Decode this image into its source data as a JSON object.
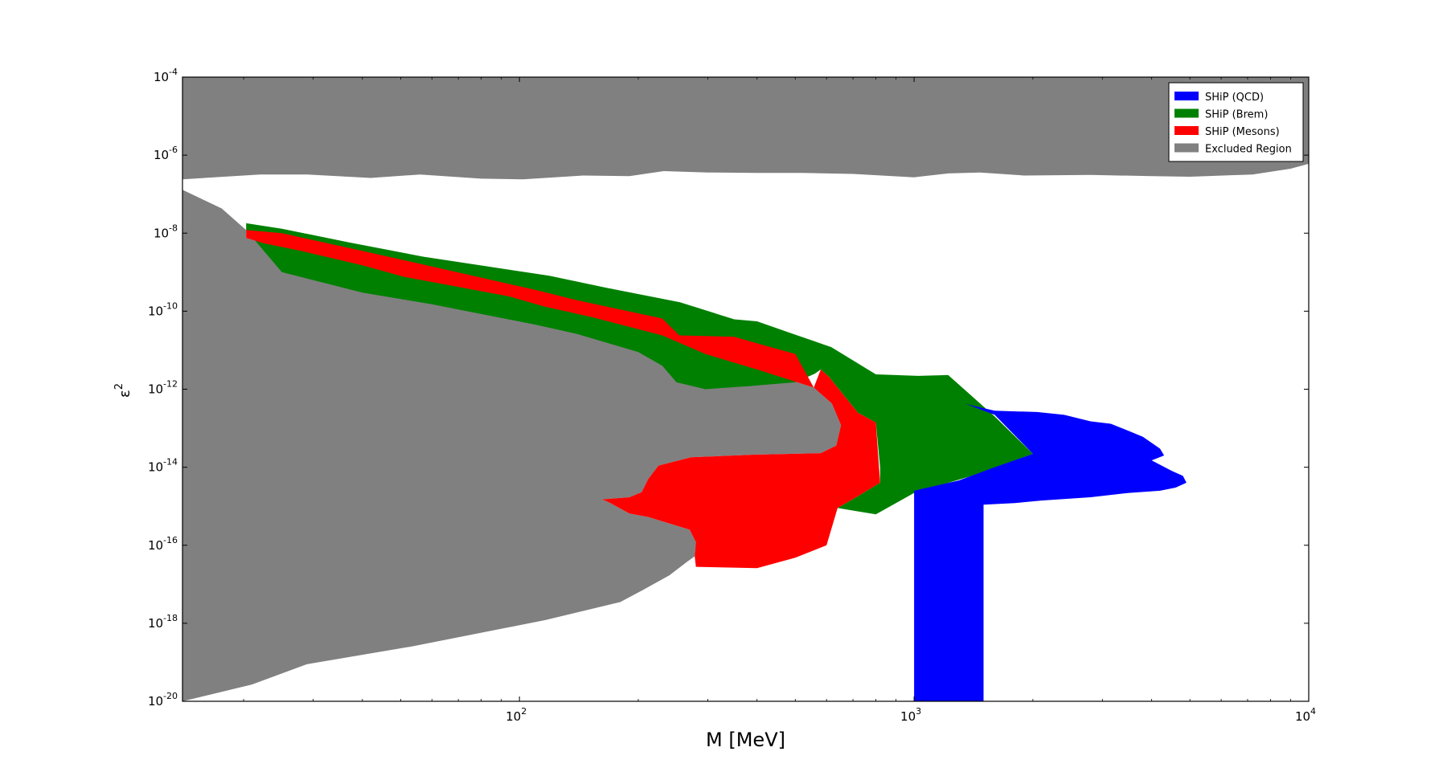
{
  "chart_data": {
    "type": "area",
    "x_scale": "log",
    "y_scale": "log",
    "xlabel": "M [MeV]",
    "ylabel": "ε²",
    "xlim": [
      14,
      10000
    ],
    "ylim": [
      1e-20,
      0.0001
    ],
    "x_tick_labels": [
      {
        "value": 100,
        "base": "10",
        "exp": "2"
      },
      {
        "value": 1000,
        "base": "10",
        "exp": "3"
      },
      {
        "value": 10000,
        "base": "10",
        "exp": "4"
      }
    ],
    "y_tick_labels": [
      {
        "value": 0.0001,
        "base": "10",
        "exp": "-4"
      },
      {
        "value": 1e-06,
        "base": "10",
        "exp": "-6"
      },
      {
        "value": 1e-08,
        "base": "10",
        "exp": "-8"
      },
      {
        "value": 1e-10,
        "base": "10",
        "exp": "-10"
      },
      {
        "value": 1e-12,
        "base": "10",
        "exp": "-12"
      },
      {
        "value": 1e-14,
        "base": "10",
        "exp": "-14"
      },
      {
        "value": 1e-16,
        "base": "10",
        "exp": "-16"
      },
      {
        "value": 1e-18,
        "base": "10",
        "exp": "-18"
      },
      {
        "value": 1e-20,
        "base": "10",
        "exp": "-20"
      }
    ],
    "legend_position": "top-right",
    "grid": false,
    "series": [
      {
        "name": "Excluded Region",
        "color": "#808080",
        "polygons": [
          [
            [
              14,
              0.0001
            ],
            [
              10000,
              0.0001
            ],
            [
              10000,
              6e-07
            ],
            [
              9000,
              4.5e-07
            ],
            [
              7200,
              3.2e-07
            ],
            [
              5000,
              2.8e-07
            ],
            [
              4000,
              2.9e-07
            ],
            [
              2800,
              3.1e-07
            ],
            [
              1900,
              3e-07
            ],
            [
              1470,
              3.6e-07
            ],
            [
              1220,
              3.4e-07
            ],
            [
              1000,
              2.7e-07
            ],
            [
              700,
              3.3e-07
            ],
            [
              520,
              3.5e-07
            ],
            [
              400,
              3.5e-07
            ],
            [
              300,
              3.6e-07
            ],
            [
              232,
              3.9e-07
            ],
            [
              190,
              2.9e-07
            ],
            [
              145,
              3e-07
            ],
            [
              102,
              2.4e-07
            ],
            [
              80,
              2.5e-07
            ],
            [
              56,
              3.2e-07
            ],
            [
              42,
              2.6e-07
            ],
            [
              29,
              3.2e-07
            ],
            [
              22,
              3.2e-07
            ],
            [
              14,
              2.4e-07
            ]
          ],
          [
            [
              14,
              1.3e-07
            ],
            [
              17.6,
              4.3e-08
            ],
            [
              20.3,
              1.2e-08
            ],
            [
              20.3,
              7.5e-09
            ],
            [
              22.5,
              5.5e-09
            ],
            [
              28,
              3.5e-09
            ],
            [
              40,
              1.5e-09
            ],
            [
              51,
              7.6e-10
            ],
            [
              94,
              2.4e-10
            ],
            [
              116,
              1.3e-10
            ],
            [
              153,
              7e-11
            ],
            [
              230,
              2.4e-11
            ],
            [
              296,
              8e-12
            ],
            [
              408,
              3e-12
            ],
            [
              557,
              1.1e-12
            ],
            [
              619,
              4.3e-13
            ],
            [
              653,
              1.2e-13
            ],
            [
              635,
              3.6e-14
            ],
            [
              580,
              2.3e-14
            ],
            [
              393,
              2.1e-14
            ],
            [
              272,
              1.8e-14
            ],
            [
              225,
              1.1e-14
            ],
            [
              212,
              5e-15
            ],
            [
              204,
              2.3e-15
            ],
            [
              190,
              1.7e-15
            ],
            [
              162,
              1.5e-15
            ],
            [
              170,
              1.2e-15
            ],
            [
              190,
              6.5e-16
            ],
            [
              212,
              5.3e-16
            ],
            [
              270,
              2.5e-16
            ],
            [
              280,
              1.2e-16
            ],
            [
              278,
              5.2e-17
            ],
            [
              266,
              3.8e-17
            ],
            [
              240,
              1.7e-17
            ],
            [
              205,
              7e-18
            ],
            [
              180,
              3.5e-18
            ],
            [
              116,
              1.2e-18
            ],
            [
              54,
              2.6e-19
            ],
            [
              29,
              9e-20
            ],
            [
              21,
              2.7e-20
            ],
            [
              14,
              1e-20
            ]
          ]
        ]
      },
      {
        "name": "SHiP (Brem)",
        "color": "#008000",
        "polygons": [
          [
            [
              20.3,
              1.8e-08
            ],
            [
              25,
              1.3e-08
            ],
            [
              37,
              5.8e-09
            ],
            [
              57,
              2.5e-09
            ],
            [
              119,
              8.1e-10
            ],
            [
              168,
              3.9e-10
            ],
            [
              255,
              1.7e-10
            ],
            [
              350,
              6.2e-11
            ],
            [
              400,
              5.5e-11
            ],
            [
              500,
              2.5e-11
            ],
            [
              617,
              1.2e-11
            ],
            [
              800,
              2.4e-12
            ],
            [
              1020,
              2.2e-12
            ],
            [
              1220,
              2.3e-12
            ],
            [
              1600,
              2e-13
            ],
            [
              2000,
              2.2e-14
            ],
            [
              1400,
              6e-15
            ],
            [
              1000,
              2.2e-15
            ],
            [
              800,
              6.2e-16
            ],
            [
              640,
              9e-16
            ],
            [
              720,
              1.8e-15
            ],
            [
              820,
              4e-15
            ],
            [
              820,
              1e-14
            ],
            [
              800,
              1.4e-13
            ],
            [
              720,
              2.5e-13
            ],
            [
              640,
              1.1e-12
            ],
            [
              608,
              2.1e-12
            ],
            [
              580,
              3.2e-12
            ],
            [
              560,
              2.5e-12
            ],
            [
              500,
              1.5e-12
            ],
            [
              380,
              1.2e-12
            ],
            [
              296,
              1e-12
            ],
            [
              250,
              1.5e-12
            ],
            [
              230,
              4e-12
            ],
            [
              200,
              9e-12
            ],
            [
              140,
              2.6e-11
            ],
            [
              110,
              4.5e-11
            ],
            [
              60,
              1.5e-10
            ],
            [
              40,
              3e-10
            ],
            [
              25,
              1e-09
            ],
            [
              20.3,
              1.2e-08
            ]
          ]
        ]
      },
      {
        "name": "SHiP (Mesons)",
        "color": "#ff0000",
        "polygons": [
          [
            [
              20.3,
              1.2e-08
            ],
            [
              25,
              1e-08
            ],
            [
              40,
              3.5e-09
            ],
            [
              60,
              1.4e-09
            ],
            [
              110,
              3.5e-10
            ],
            [
              140,
              1.9e-10
            ],
            [
              230,
              6.5e-11
            ],
            [
              254,
              2.4e-11
            ],
            [
              350,
              2.2e-11
            ],
            [
              400,
              1.5e-11
            ],
            [
              500,
              8e-12
            ],
            [
              557,
              1.1e-12
            ],
            [
              580,
              3.2e-12
            ],
            [
              608,
              2.1e-12
            ],
            [
              640,
              1.1e-12
            ],
            [
              720,
              2.5e-13
            ],
            [
              800,
              1.4e-13
            ],
            [
              820,
              4e-15
            ],
            [
              720,
              1.8e-15
            ],
            [
              640,
              9e-16
            ],
            [
              600,
              1e-16
            ],
            [
              500,
              4.8e-17
            ],
            [
              400,
              2.6e-17
            ],
            [
              280,
              2.8e-17
            ],
            [
              278,
              5.2e-17
            ],
            [
              280,
              1.2e-16
            ],
            [
              270,
              2.5e-16
            ],
            [
              212,
              5.3e-16
            ],
            [
              190,
              6.5e-16
            ],
            [
              170,
              1.2e-15
            ],
            [
              162,
              1.5e-15
            ],
            [
              190,
              1.7e-15
            ],
            [
              204,
              2.3e-15
            ],
            [
              212,
              5e-15
            ],
            [
              225,
              1.1e-14
            ],
            [
              272,
              1.8e-14
            ],
            [
              393,
              2.1e-14
            ],
            [
              580,
              2.3e-14
            ],
            [
              635,
              3.6e-14
            ],
            [
              653,
              1.2e-13
            ],
            [
              619,
              4.3e-13
            ],
            [
              557,
              1.1e-12
            ],
            [
              408,
              3e-12
            ],
            [
              296,
              8e-12
            ],
            [
              230,
              2.4e-11
            ],
            [
              153,
              7e-11
            ],
            [
              116,
              1.3e-10
            ],
            [
              94,
              2.4e-10
            ],
            [
              51,
              7.6e-10
            ],
            [
              40,
              1.5e-09
            ],
            [
              28,
              3.5e-09
            ],
            [
              22.5,
              5.5e-09
            ],
            [
              20.3,
              7.5e-09
            ]
          ]
        ]
      },
      {
        "name": "SHiP (QCD)",
        "color": "#0000ff",
        "polygons": [
          [
            [
              1000,
              1e-20
            ],
            [
              1000,
              2.5e-15
            ],
            [
              1300,
              4.6e-15
            ],
            [
              1600,
              1e-14
            ],
            [
              2000,
              2.2e-14
            ],
            [
              1600,
              2.2e-13
            ],
            [
              1350,
              4.2e-13
            ],
            [
              1600,
              2.8e-13
            ],
            [
              2050,
              2.6e-13
            ],
            [
              2400,
              2.2e-13
            ],
            [
              2800,
              1.5e-13
            ],
            [
              3150,
              1.3e-13
            ],
            [
              3500,
              8.5e-14
            ],
            [
              3800,
              6e-14
            ],
            [
              4200,
              3e-14
            ],
            [
              4300,
              2e-14
            ],
            [
              4000,
              1.5e-14
            ],
            [
              4500,
              8e-15
            ],
            [
              4800,
              6e-15
            ],
            [
              4900,
              4e-15
            ],
            [
              4600,
              3e-15
            ],
            [
              4200,
              2.5e-15
            ],
            [
              3500,
              2.2e-15
            ],
            [
              2800,
              1.7e-15
            ],
            [
              2100,
              1.4e-15
            ],
            [
              1800,
              1.2e-15
            ],
            [
              1500,
              1.1e-15
            ],
            [
              1500,
              1e-20
            ]
          ]
        ]
      }
    ],
    "legend": [
      {
        "label": "SHiP (QCD)",
        "color": "#0000ff"
      },
      {
        "label": "SHiP (Brem)",
        "color": "#008000"
      },
      {
        "label": "SHiP (Mesons)",
        "color": "#ff0000"
      },
      {
        "label": "Excluded Region",
        "color": "#808080"
      }
    ]
  }
}
